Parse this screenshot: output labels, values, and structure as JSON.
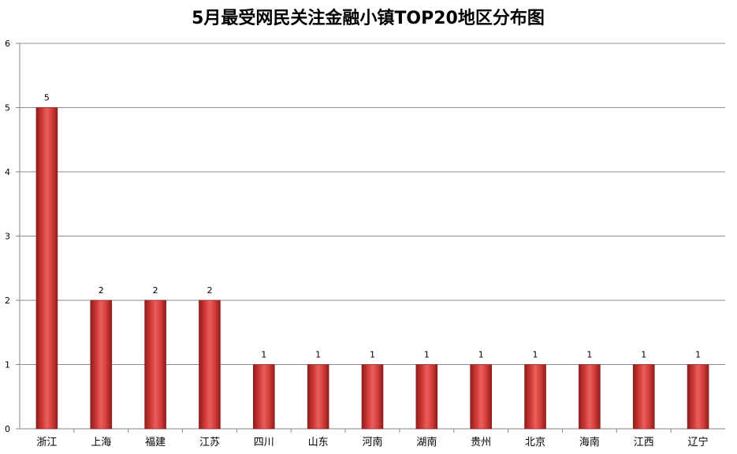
{
  "chart_data": {
    "type": "bar",
    "title": "5月最受网民关注金融小镇TOP20地区分布图",
    "xlabel": "",
    "ylabel": "",
    "categories": [
      "浙江",
      "上海",
      "福建",
      "江苏",
      "四川",
      "山东",
      "河南",
      "湖南",
      "贵州",
      "北京",
      "海南",
      "江西",
      "辽宁"
    ],
    "values": [
      5,
      2,
      2,
      2,
      1,
      1,
      1,
      1,
      1,
      1,
      1,
      1,
      1
    ],
    "ylim": [
      0,
      6
    ],
    "yticks": [
      "0",
      "1",
      "2",
      "3",
      "4",
      "5",
      "6"
    ],
    "data_labels": [
      "5",
      "2",
      "2",
      "2",
      "1",
      "1",
      "1",
      "1",
      "1",
      "1",
      "1",
      "1",
      "1"
    ],
    "grid": true,
    "legend": "none",
    "colors": {
      "bar_light": "#e8605c",
      "bar_mid": "#d43c38",
      "bar_dark": "#8e1d1b",
      "grid": "#8c8c8c",
      "axis": "#868686"
    }
  }
}
